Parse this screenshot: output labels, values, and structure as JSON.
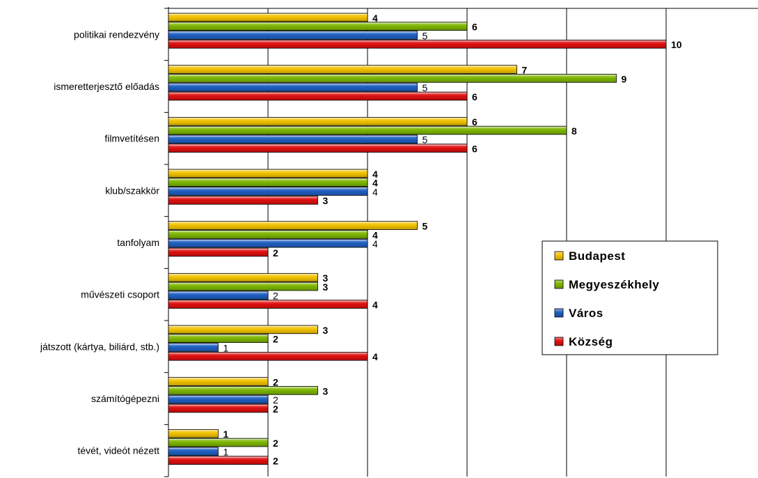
{
  "chart_data": {
    "type": "bar",
    "orientation": "horizontal",
    "categories": [
      "politikai rendezvény",
      "ismeretterjesztő előadás",
      "filmvetítésen",
      "klub/szakkör",
      "tanfolyam",
      "művészeti csoport",
      "játszott (kártya, biliárd, stb.)",
      "számítógépezni",
      "tévét, videót nézett"
    ],
    "series": [
      {
        "name": "Budapest",
        "color": "#F2C200",
        "values": [
          4,
          7,
          6,
          4,
          5,
          3,
          3,
          2,
          1
        ],
        "label_bold": true
      },
      {
        "name": "Megyeszékhely",
        "color": "#7DB600",
        "values": [
          6,
          9,
          8,
          4,
          4,
          3,
          2,
          3,
          2
        ],
        "label_bold": true
      },
      {
        "name": "Város",
        "color": "#1F5FC2",
        "values": [
          5,
          5,
          5,
          4,
          4,
          2,
          1,
          2,
          1
        ],
        "label_bold": false
      },
      {
        "name": "Község",
        "color": "#E01010",
        "values": [
          10,
          6,
          6,
          3,
          2,
          4,
          4,
          2,
          2
        ],
        "label_bold": true
      }
    ],
    "xlim": [
      0,
      12
    ],
    "x_tick_step": 2,
    "grid": true,
    "legend_position": "right"
  }
}
